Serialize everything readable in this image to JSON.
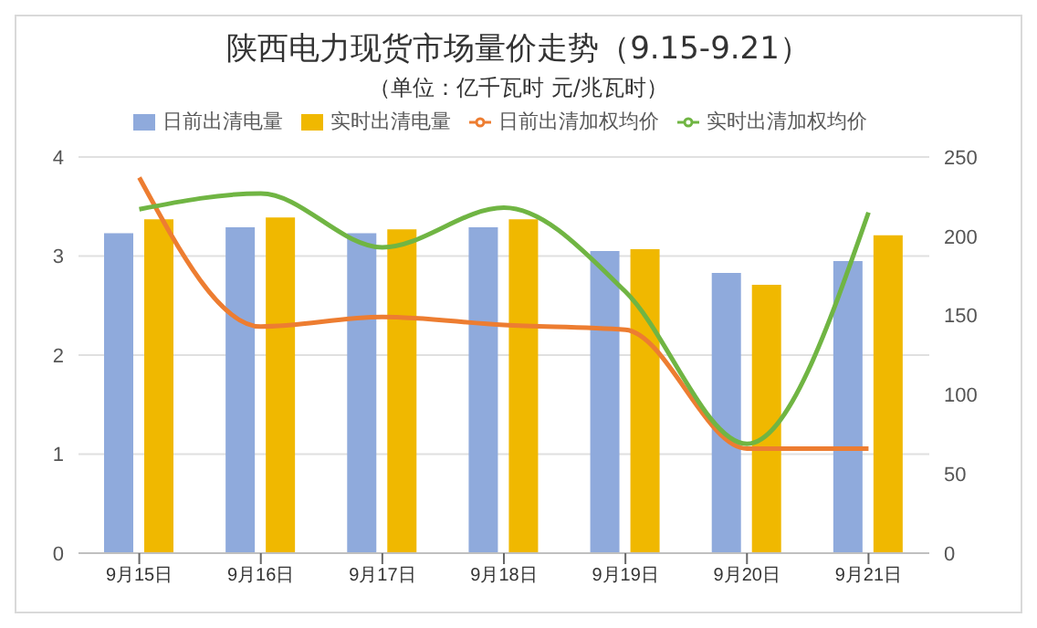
{
  "chart_data": {
    "type": "bar",
    "title": "陕西电力现货市场量价走势（9.15-9.21）",
    "subtitle": "（单位：亿千瓦时 元/兆瓦时）",
    "categories": [
      "9月15日",
      "9月16日",
      "9月17日",
      "9月18日",
      "9月19日",
      "9月20日",
      "9月21日"
    ],
    "series": [
      {
        "name": "日前出清电量",
        "color": "#8faadc",
        "values": [
          3.23,
          3.29,
          3.23,
          3.29,
          3.05,
          2.83,
          2.95
        ]
      },
      {
        "name": "实时出清电量",
        "color": "#f0b800",
        "values": [
          3.37,
          3.39,
          3.27,
          3.37,
          3.07,
          2.71,
          3.21
        ]
      },
      {
        "name": "日前出清加权均价",
        "type": "line",
        "axis": "y2",
        "color": "#ed7d31",
        "values": [
          237,
          143,
          149,
          144,
          141,
          66,
          66
        ]
      },
      {
        "name": "实时出清加权均价",
        "type": "line",
        "axis": "y2",
        "color": "#70b543",
        "values": [
          217,
          227,
          193,
          218,
          165,
          69,
          215
        ]
      }
    ],
    "ylim": [
      0,
      4
    ],
    "yticks": [
      0,
      1,
      2,
      3,
      4
    ],
    "y2lim": [
      0,
      250
    ],
    "y2ticks": [
      0,
      50,
      100,
      150,
      200,
      250
    ],
    "grid": "y",
    "legend": "top",
    "marker": "none"
  }
}
